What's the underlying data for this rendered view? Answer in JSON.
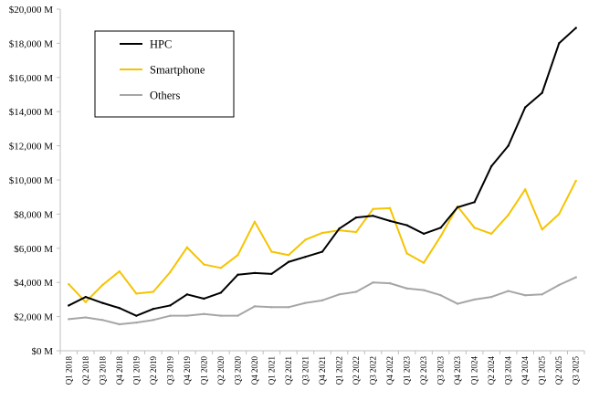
{
  "chart_data": {
    "type": "line",
    "title": "",
    "xlabel": "",
    "ylabel": "",
    "ylim": [
      0,
      20000
    ],
    "y_unit_suffix": " M",
    "y_ticks": [
      0,
      2000,
      4000,
      6000,
      8000,
      10000,
      12000,
      14000,
      16000,
      18000,
      20000
    ],
    "y_tick_labels": [
      "$0 M",
      "$2,000 M",
      "$4,000 M",
      "$6,000 M",
      "$8,000 M",
      "$10,000 M",
      "$12,000 M",
      "$14,000 M",
      "$16,000 M",
      "$18,000 M",
      "$20,000 M"
    ],
    "grid": false,
    "legend_position": "top-left",
    "categories": [
      "Q1 2018",
      "Q2 2018",
      "Q3 2018",
      "Q4 2018",
      "Q1 2019",
      "Q2 2019",
      "Q3 2019",
      "Q4 2019",
      "Q1 2020",
      "Q2 2020",
      "Q3 2020",
      "Q4 2020",
      "Q1 2021",
      "Q2 2021",
      "Q3 2021",
      "Q4 2021",
      "Q1 2022",
      "Q2 2022",
      "Q3 2022",
      "Q4 2022",
      "Q1 2023",
      "Q2 2023",
      "Q3 2023",
      "Q4 2023",
      "Q1 2024",
      "Q2 2024",
      "Q3 2024",
      "Q4 2024",
      "Q1 2025",
      "Q2 2025",
      "Q3 2025"
    ],
    "series": [
      {
        "name": "HPC",
        "color": "#000000",
        "values": [
          2650,
          3150,
          2800,
          2500,
          2050,
          2450,
          2650,
          3300,
          3050,
          3400,
          4450,
          4550,
          4500,
          5200,
          5500,
          5800,
          7150,
          7800,
          7900,
          7600,
          7350,
          6850,
          7200,
          8400,
          8700,
          10800,
          12000,
          14250,
          15100,
          18000,
          18900
        ]
      },
      {
        "name": "Smartphone",
        "color": "#f5c400",
        "values": [
          3900,
          2850,
          3850,
          4650,
          3350,
          3450,
          4600,
          6050,
          5050,
          4850,
          5600,
          7550,
          5800,
          5600,
          6500,
          6900,
          7050,
          6950,
          8300,
          8350,
          5700,
          5150,
          6700,
          8450,
          7200,
          6850,
          7950,
          9450,
          7100,
          8000,
          9950
        ]
      },
      {
        "name": "Others",
        "color": "#a6a6a6",
        "values": [
          1850,
          1950,
          1800,
          1550,
          1650,
          1800,
          2050,
          2050,
          2150,
          2050,
          2050,
          2600,
          2550,
          2550,
          2800,
          2950,
          3300,
          3450,
          4000,
          3950,
          3650,
          3550,
          3250,
          2750,
          3000,
          3150,
          3500,
          3250,
          3300,
          3850,
          4300
        ]
      }
    ]
  }
}
